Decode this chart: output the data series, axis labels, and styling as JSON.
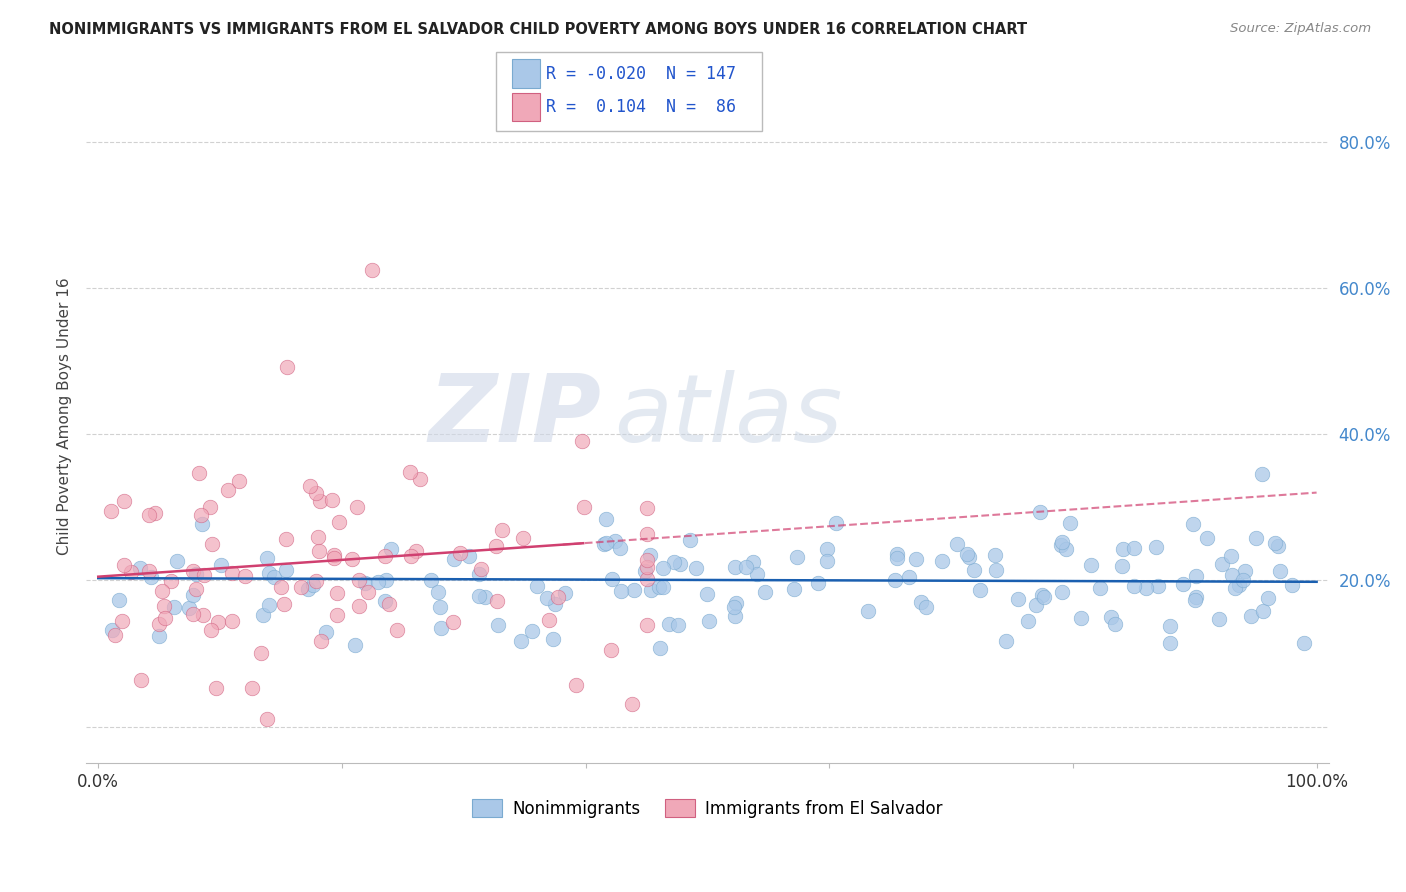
{
  "title": "NONIMMIGRANTS VS IMMIGRANTS FROM EL SALVADOR CHILD POVERTY AMONG BOYS UNDER 16 CORRELATION CHART",
  "source": "Source: ZipAtlas.com",
  "ylabel": "Child Poverty Among Boys Under 16",
  "xlim": [
    -0.01,
    1.01
  ],
  "ylim": [
    -0.05,
    0.9
  ],
  "x_ticks": [
    0.0,
    0.2,
    0.4,
    0.6,
    0.8,
    1.0
  ],
  "x_tick_labels": [
    "0.0%",
    "",
    "",
    "",
    "",
    "100.0%"
  ],
  "y_ticks": [
    0.0,
    0.2,
    0.4,
    0.6,
    0.8
  ],
  "y_tick_labels": [
    "",
    "20.0%",
    "40.0%",
    "60.0%",
    "80.0%"
  ],
  "blue_R": -0.02,
  "blue_N": 147,
  "pink_R": 0.104,
  "pink_N": 86,
  "blue_color": "#aac8e8",
  "blue_edge_color": "#7aaad0",
  "blue_line_color": "#1a5fb0",
  "pink_color": "#f0a8b8",
  "pink_edge_color": "#d06080",
  "pink_line_color": "#d04070",
  "watermark_zip": "ZIP",
  "watermark_atlas": "atlas",
  "background_color": "#ffffff",
  "grid_color": "#cccccc",
  "y_label_color": "#4488cc",
  "x_label_color": "#4488cc"
}
